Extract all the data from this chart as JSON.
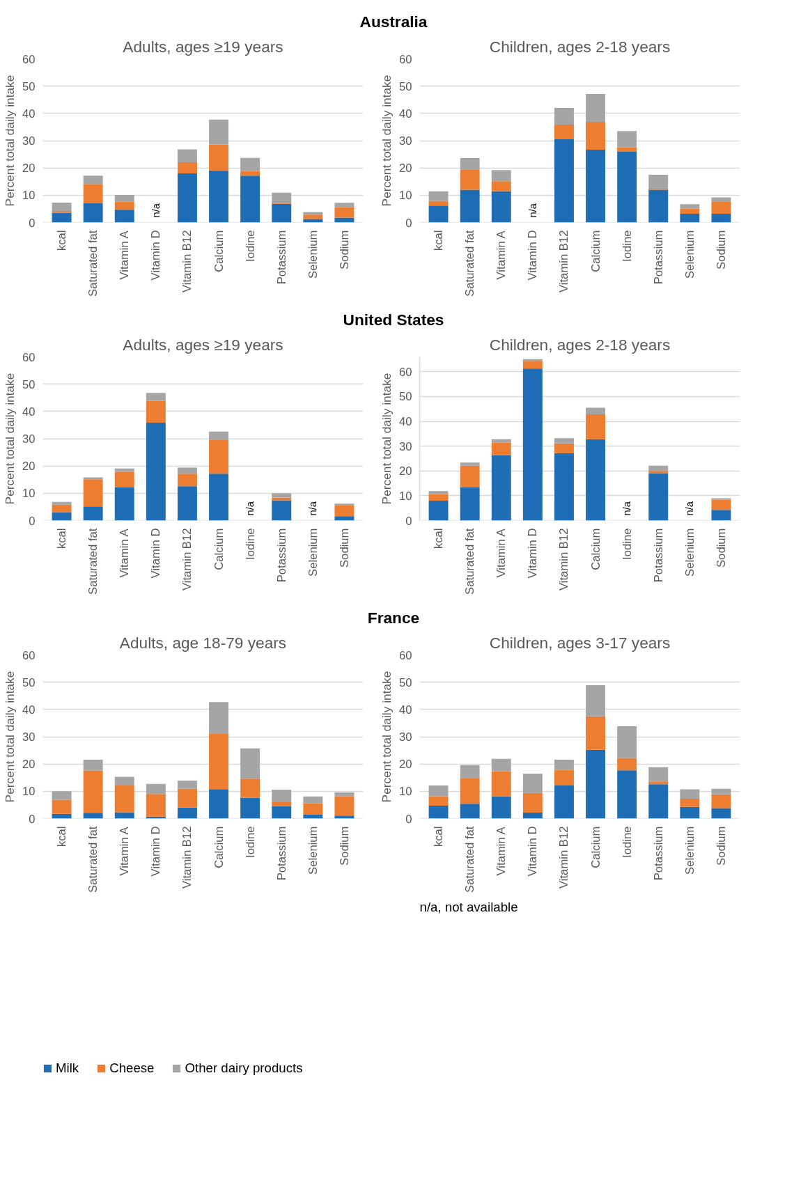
{
  "chart_data": [
    {
      "type": "bar",
      "stacked": true,
      "title": "Adults, ages ≥19 years",
      "ylabel": "Percent total daily intake",
      "categories": [
        "kcal",
        "Saturated fat",
        "Vitamin A",
        "Vitamin D",
        "Vitamin B12",
        "Calcium",
        "Iodine",
        "Potassium",
        "Selenium",
        "Sodium"
      ],
      "ylim": [
        0,
        60
      ],
      "yticks": [
        0,
        10,
        20,
        30,
        40,
        50,
        60
      ],
      "grid": "y",
      "annotations": [
        "Australia"
      ],
      "series": [
        {
          "color": "#1f6eb5",
          "values": [
            3.5,
            7.0,
            4.8,
            null,
            18.0,
            19.1,
            17.2,
            6.8,
            1.3,
            1.8
          ],
          "value_labels": [
            null,
            null,
            null,
            "n/a",
            null,
            null,
            null,
            null,
            null,
            null
          ]
        },
        {
          "color": "#ed7d31",
          "values": [
            0.7,
            7.1,
            2.8,
            null,
            4.1,
            9.5,
            1.6,
            0.5,
            1.6,
            3.8
          ]
        },
        {
          "color": "#a5a5a5",
          "values": [
            3.1,
            3.1,
            2.5,
            null,
            4.7,
            9.1,
            4.9,
            3.6,
            0.9,
            1.6
          ]
        }
      ]
    },
    {
      "type": "bar",
      "stacked": true,
      "title": "Children, ages 2-18 years",
      "ylabel": "Percent total daily intake",
      "categories": [
        "kcal",
        "Saturated fat",
        "Vitamin A",
        "Vitamin D",
        "Vitamin B12",
        "Calcium",
        "Iodine",
        "Potassium",
        "Selenium",
        "Sodium"
      ],
      "ylim": [
        0,
        60
      ],
      "yticks": [
        0,
        10,
        20,
        30,
        40,
        50,
        60
      ],
      "grid": "y",
      "series": [
        {
          "color": "#1f6eb5",
          "values": [
            6.2,
            12.0,
            11.5,
            null,
            30.5,
            26.7,
            25.9,
            12.0,
            3.2,
            3.2
          ],
          "value_labels": [
            null,
            null,
            null,
            "n/a",
            null,
            null,
            null,
            null,
            null,
            null
          ]
        },
        {
          "color": "#ed7d31",
          "values": [
            1.7,
            7.5,
            3.6,
            null,
            5.4,
            10.2,
            1.6,
            0.4,
            1.9,
            4.5
          ]
        },
        {
          "color": "#a5a5a5",
          "values": [
            3.5,
            4.1,
            4.1,
            null,
            6.1,
            10.2,
            6.0,
            5.1,
            1.6,
            1.5
          ]
        }
      ]
    },
    {
      "type": "bar",
      "stacked": true,
      "title": "Adults, ages ≥19 years",
      "ylabel": "Percent total daily intake",
      "categories": [
        "kcal",
        "Saturated fat",
        "Vitamin A",
        "Vitamin D",
        "Vitamin B12",
        "Calcium",
        "Iodine",
        "Potassium",
        "Selenium",
        "Sodium"
      ],
      "ylim": [
        0,
        60
      ],
      "yticks": [
        0,
        10,
        20,
        30,
        40,
        50,
        60
      ],
      "grid": "y",
      "annotations": [
        "United States"
      ],
      "series": [
        {
          "color": "#1f6eb5",
          "values": [
            3.0,
            5.2,
            12.2,
            35.9,
            12.6,
            17.2,
            null,
            7.4,
            null,
            1.6
          ],
          "value_labels": [
            null,
            null,
            null,
            null,
            null,
            null,
            "n/a",
            null,
            "n/a",
            null
          ]
        },
        {
          "color": "#ed7d31",
          "values": [
            2.8,
            9.9,
            5.6,
            8.0,
            4.6,
            12.5,
            null,
            1.0,
            null,
            4.1
          ]
        },
        {
          "color": "#a5a5a5",
          "values": [
            1.0,
            0.7,
            1.3,
            2.9,
            2.2,
            2.9,
            null,
            1.6,
            null,
            0.5
          ]
        }
      ]
    },
    {
      "type": "bar",
      "stacked": true,
      "title": "Children, ages 2-18 years",
      "ylabel": "Percent total daily intake",
      "categories": [
        "kcal",
        "Saturated fat",
        "Vitamin A",
        "Vitamin D",
        "Vitamin B12",
        "Calcium",
        "Iodine",
        "Potassium",
        "Selenium",
        "Sodium"
      ],
      "ylim": [
        0,
        66
      ],
      "yticks": [
        0,
        10,
        20,
        30,
        40,
        50,
        60
      ],
      "grid": "y",
      "series": [
        {
          "color": "#1f6eb5",
          "values": [
            8.0,
            13.5,
            26.4,
            61.3,
            27.2,
            32.8,
            null,
            19.0,
            null,
            4.3
          ],
          "value_labels": [
            null,
            null,
            null,
            null,
            null,
            null,
            "n/a",
            null,
            "n/a",
            null
          ]
        },
        {
          "color": "#ed7d31",
          "values": [
            2.7,
            8.6,
            5.0,
            3.1,
            3.9,
            10.0,
            null,
            1.0,
            null,
            4.1
          ]
        },
        {
          "color": "#a5a5a5",
          "values": [
            1.2,
            1.3,
            1.4,
            0.7,
            2.1,
            2.7,
            null,
            2.1,
            null,
            0.6
          ]
        }
      ]
    },
    {
      "type": "bar",
      "stacked": true,
      "title": "Adults, age 18-79 years",
      "ylabel": "Percent total daily intake",
      "categories": [
        "kcal",
        "Saturated fat",
        "Vitamin A",
        "Vitamin D",
        "Vitamin B12",
        "Calcium",
        "Iodine",
        "Potassium",
        "Selenium",
        "Sodium"
      ],
      "ylim": [
        0,
        60
      ],
      "yticks": [
        0,
        10,
        20,
        30,
        40,
        50,
        60
      ],
      "grid": "y",
      "legend": "bottom",
      "annotations": [
        "France"
      ],
      "series": [
        {
          "name": "Milk",
          "color": "#1f6eb5",
          "values": [
            1.7,
            2.1,
            2.3,
            0.7,
            4.0,
            10.8,
            7.6,
            4.6,
            1.4,
            1.1
          ]
        },
        {
          "name": "Cheese",
          "color": "#ed7d31",
          "values": [
            5.2,
            15.5,
            9.8,
            8.3,
            7.0,
            20.4,
            7.0,
            1.4,
            4.2,
            7.0
          ]
        },
        {
          "name": "Other dairy products",
          "color": "#a5a5a5",
          "values": [
            3.1,
            4.0,
            3.2,
            3.7,
            2.9,
            11.5,
            11.1,
            4.6,
            2.5,
            1.5
          ]
        }
      ]
    },
    {
      "type": "bar",
      "stacked": true,
      "title": "Children, ages 3-17 years",
      "ylabel": "Percent total daily intake",
      "categories": [
        "kcal",
        "Saturated fat",
        "Vitamin A",
        "Vitamin D",
        "Vitamin B12",
        "Calcium",
        "Iodine",
        "Potassium",
        "Selenium",
        "Sodium"
      ],
      "ylim": [
        0,
        60
      ],
      "yticks": [
        0,
        10,
        20,
        30,
        40,
        50,
        60
      ],
      "grid": "y",
      "annotations": [
        "n/a, not available"
      ],
      "series": [
        {
          "color": "#1f6eb5",
          "values": [
            4.7,
            5.4,
            8.2,
            2.2,
            12.1,
            25.2,
            17.7,
            12.6,
            4.3,
            3.8
          ]
        },
        {
          "color": "#ed7d31",
          "values": [
            3.5,
            9.5,
            9.1,
            7.2,
            5.8,
            12.3,
            4.5,
            1.0,
            3.0,
            5.1
          ]
        },
        {
          "color": "#a5a5a5",
          "values": [
            3.9,
            4.7,
            4.6,
            7.1,
            3.7,
            11.4,
            11.6,
            5.2,
            3.4,
            2.0
          ]
        }
      ]
    }
  ]
}
